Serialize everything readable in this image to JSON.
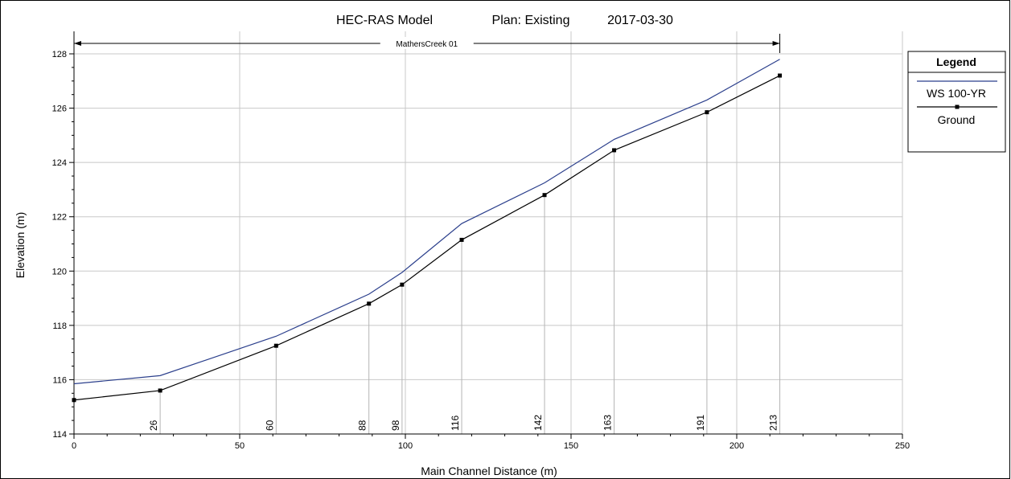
{
  "chart_data": {
    "type": "line",
    "title_parts": [
      "HEC-RAS Model",
      "Plan: Existing",
      "2017-03-30"
    ],
    "xlabel": "Main Channel Distance (m)",
    "ylabel": "Elevation (m)",
    "xlim": [
      0,
      250
    ],
    "ylim": [
      114,
      128
    ],
    "x_ticks": [
      0,
      50,
      100,
      150,
      200,
      250
    ],
    "y_ticks": [
      114,
      116,
      118,
      120,
      122,
      124,
      126,
      128
    ],
    "grid": true,
    "reach_label": "MathersCreek 01",
    "reach_extent": [
      0,
      213
    ],
    "stations": [
      {
        "label": "26",
        "x": 26
      },
      {
        "label": "60",
        "x": 61
      },
      {
        "label": "88",
        "x": 89
      },
      {
        "label": "98",
        "x": 99
      },
      {
        "label": "116",
        "x": 117
      },
      {
        "label": "142",
        "x": 142
      },
      {
        "label": "163",
        "x": 163
      },
      {
        "label": "191",
        "x": 191
      },
      {
        "label": "213",
        "x": 213
      }
    ],
    "series": [
      {
        "name": "WS  100-YR",
        "color": "#2b3f8c",
        "x": [
          0,
          26,
          61,
          89,
          99,
          117,
          142,
          163,
          191,
          213
        ],
        "y": [
          115.85,
          116.15,
          117.6,
          119.15,
          119.95,
          121.75,
          123.25,
          124.85,
          126.3,
          127.8
        ]
      },
      {
        "name": "Ground",
        "color": "#000000",
        "marker": "square",
        "x": [
          0,
          26,
          61,
          89,
          99,
          117,
          142,
          163,
          191,
          213
        ],
        "y": [
          115.25,
          115.6,
          117.25,
          118.8,
          119.5,
          121.15,
          122.8,
          124.45,
          125.85,
          127.2
        ]
      }
    ],
    "legend": {
      "title": "Legend",
      "position": "right"
    }
  }
}
